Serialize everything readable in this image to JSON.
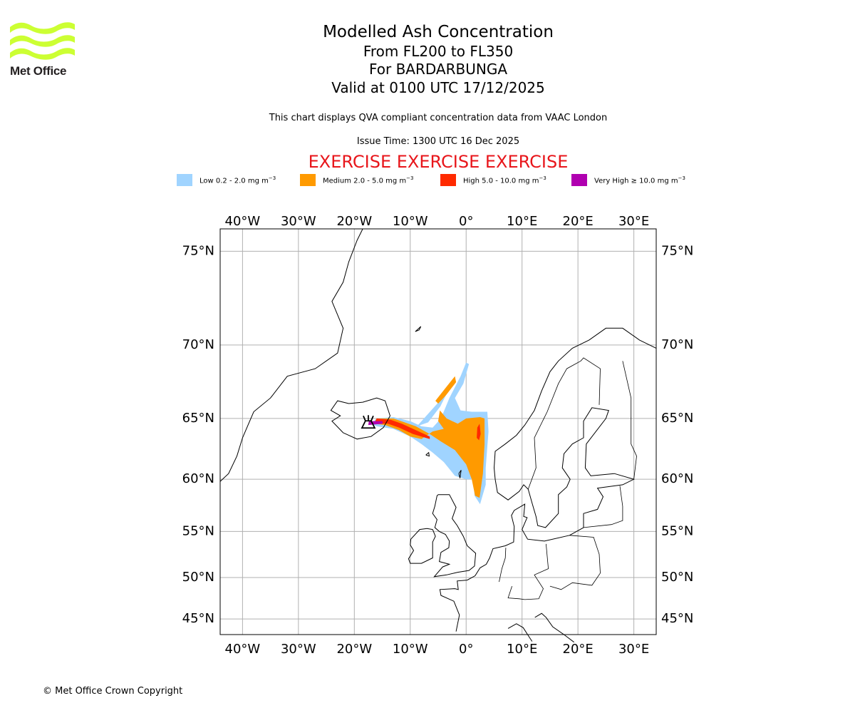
{
  "header": {
    "logo": {
      "text": "Met Office",
      "color": "#ccff33"
    },
    "title": "Modelled Ash Concentration",
    "level_range": "From FL200 to FL350",
    "volcano": "For BARDARBUNGA",
    "valid_time": "Valid at 0100 UTC 17/12/2025",
    "description": "This chart displays QVA compliant concentration data from VAAC London",
    "issue_time": "Issue Time: 1300 UTC 16 Dec 2025",
    "exercise_banner": "EXERCISE EXERCISE EXERCISE"
  },
  "legend": [
    {
      "label": "Low 0.2 - 2.0 mg m",
      "unit_exp": "−3",
      "color": "#a0d4ff",
      "icon": "low-concentration-swatch"
    },
    {
      "label": "Medium 2.0 - 5.0 mg m",
      "unit_exp": "−3",
      "color": "#ff9a00",
      "icon": "medium-concentration-swatch"
    },
    {
      "label": "High 5.0 - 10.0 mg m",
      "unit_exp": "−3",
      "color": "#ff2a00",
      "icon": "high-concentration-swatch"
    },
    {
      "label": "Very High ≥ 10.0 mg m",
      "unit_exp": "−3",
      "color": "#b000b0",
      "icon": "very-high-concentration-swatch"
    }
  ],
  "map": {
    "lon_range": [
      -44,
      34
    ],
    "lat_range": [
      43,
      76
    ],
    "lon_ticks": [
      {
        "value": -40,
        "label": "40°W"
      },
      {
        "value": -30,
        "label": "30°W"
      },
      {
        "value": -20,
        "label": "20°W"
      },
      {
        "value": -10,
        "label": "10°W"
      },
      {
        "value": 0,
        "label": "0°"
      },
      {
        "value": 10,
        "label": "10°E"
      },
      {
        "value": 20,
        "label": "20°E"
      },
      {
        "value": 30,
        "label": "30°E"
      }
    ],
    "lat_ticks": [
      {
        "value": 75,
        "label": "75°N"
      },
      {
        "value": 70,
        "label": "70°N"
      },
      {
        "value": 65,
        "label": "65°N"
      },
      {
        "value": 60,
        "label": "60°N"
      },
      {
        "value": 55,
        "label": "55°N"
      },
      {
        "value": 50,
        "label": "50°N"
      },
      {
        "value": 45,
        "label": "45°N"
      }
    ],
    "volcano_location": {
      "lon": -17.5,
      "lat": 64.6,
      "icon": "volcano-icon"
    },
    "ash_areas": {
      "low": [
        [
          [
            -16,
            65
          ],
          [
            -13,
            65.1
          ],
          [
            -10,
            64.8
          ],
          [
            -8,
            64.4
          ],
          [
            -6,
            64.3
          ],
          [
            -4.5,
            65
          ],
          [
            -3,
            66.5
          ],
          [
            -1,
            68
          ],
          [
            0,
            68.9
          ],
          [
            0.5,
            68.8
          ],
          [
            -0.5,
            67.5
          ],
          [
            -2,
            66.5
          ],
          [
            -1,
            65.6
          ],
          [
            1,
            65.5
          ],
          [
            3.8,
            65.5
          ],
          [
            4,
            64
          ],
          [
            3.5,
            61
          ],
          [
            3.5,
            59.5
          ],
          [
            2.5,
            57.7
          ],
          [
            1.5,
            58.5
          ],
          [
            1.3,
            60
          ],
          [
            0,
            60
          ],
          [
            -2,
            60.3
          ],
          [
            -4,
            61.5
          ],
          [
            -6,
            62.3
          ],
          [
            -8,
            63
          ],
          [
            -10,
            63.6
          ],
          [
            -13,
            64.2
          ],
          [
            -16,
            64.4
          ],
          [
            -17,
            64.6
          ]
        ],
        [
          [
            -8.8,
            64.4
          ],
          [
            -4.5,
            66.4
          ],
          [
            -3.5,
            66.8
          ],
          [
            -4.6,
            65.9
          ],
          [
            -6.8,
            64.7
          ]
        ]
      ],
      "medium": [
        [
          [
            -16,
            65
          ],
          [
            -13,
            65
          ],
          [
            -9,
            64.4
          ],
          [
            -6.5,
            63.8
          ],
          [
            -4.5,
            63.2
          ],
          [
            -2,
            62.5
          ],
          [
            0,
            61.3
          ],
          [
            1,
            60
          ],
          [
            1.6,
            58.5
          ],
          [
            2.4,
            58.3
          ],
          [
            3,
            60.5
          ],
          [
            3.3,
            63
          ],
          [
            3.3,
            65
          ],
          [
            2.5,
            65.1
          ],
          [
            0,
            65
          ],
          [
            -1.5,
            64.6
          ],
          [
            -3.5,
            65
          ],
          [
            -4.7,
            65.6
          ],
          [
            -5,
            64.8
          ],
          [
            -4,
            64.2
          ],
          [
            -6,
            64
          ],
          [
            -8,
            63.4
          ],
          [
            -10,
            63.6
          ],
          [
            -12,
            64.1
          ],
          [
            -14.5,
            64.5
          ],
          [
            -16.5,
            64.6
          ]
        ],
        [
          [
            -5.5,
            66.3
          ],
          [
            -3.5,
            67.3
          ],
          [
            -2,
            68
          ],
          [
            -1.8,
            67.6
          ],
          [
            -3.6,
            66.7
          ],
          [
            -5,
            66.1
          ]
        ]
      ],
      "high": [
        [
          [
            -16,
            65
          ],
          [
            -13.5,
            64.9
          ],
          [
            -11.5,
            64.6
          ],
          [
            -9.5,
            64.2
          ],
          [
            -6.5,
            63.6
          ],
          [
            -6.5,
            63.4
          ],
          [
            -9.5,
            63.8
          ],
          [
            -12,
            64.3
          ],
          [
            -14,
            64.6
          ],
          [
            -16.5,
            64.6
          ]
        ],
        [
          [
            2,
            64.3
          ],
          [
            2.4,
            64.6
          ],
          [
            2.6,
            63.8
          ],
          [
            2.3,
            63.3
          ],
          [
            1.9,
            63.5
          ]
        ]
      ],
      "very_high": [
        [
          [
            -17.4,
            64.8
          ],
          [
            -15,
            64.8
          ],
          [
            -14.9,
            64.6
          ],
          [
            -17.5,
            64.5
          ]
        ]
      ]
    }
  },
  "footer": {
    "copyright": "© Met Office Crown Copyright"
  }
}
